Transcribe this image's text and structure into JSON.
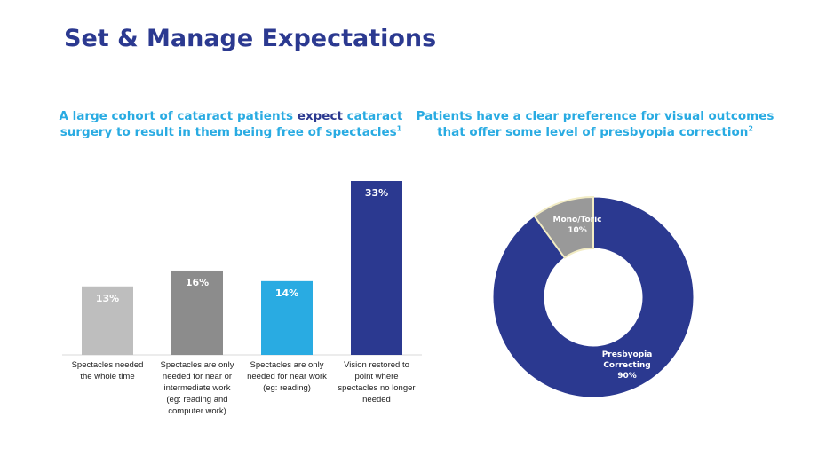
{
  "title": "Set & Manage Expectations",
  "left_panel": {
    "subtitle_part1": "A large cohort of cataract patients ",
    "subtitle_part2": "expect",
    "subtitle_part3": " cataract surgery to result in them being free of spectacles",
    "subtitle_ref": "1"
  },
  "right_panel": {
    "subtitle_text": "Patients have a clear preference for visual outcomes that offer some level of presbyopia correction",
    "subtitle_ref": "2"
  },
  "colors": {
    "title": "#2b3990",
    "accent_blue": "#29abe2",
    "dark_blue": "#2b3990",
    "light_gray": "#bebebe",
    "mid_gray": "#8c8c8c"
  },
  "chart_data": [
    {
      "type": "bar",
      "categories": [
        "Spectacles needed the whole time",
        "Spectacles are only needed for near or intermediate work (eg: reading and computer work)",
        "Spectacles are only needed for near work (eg: reading)",
        "Vision restored to point where spectacles no longer needed"
      ],
      "category_lines": [
        [
          "Spectacles needed",
          "the whole time"
        ],
        [
          "Spectacles are only",
          "needed for near or",
          "intermediate work",
          "(eg: reading and",
          "computer work)"
        ],
        [
          "Spectacles are only",
          "needed for near work",
          "(eg: reading)"
        ],
        [
          "Vision restored to",
          "point where",
          "spectacles no longer",
          "needed"
        ]
      ],
      "values": [
        13,
        16,
        14,
        33
      ],
      "data_labels": [
        "13%",
        "16%",
        "14%",
        "33%"
      ],
      "bar_colors": [
        "#bebebe",
        "#8c8c8c",
        "#29abe2",
        "#2b3990"
      ],
      "ylim": [
        0,
        35
      ],
      "unit": "%",
      "title": "A large cohort of cataract patients expect cataract surgery to result in them being free of spectacles"
    },
    {
      "type": "pie",
      "style": "donut",
      "labels": [
        "Presbyopia Correcting",
        "Mono/Toric"
      ],
      "label_lines": [
        [
          "Presbyopia",
          "Correcting",
          "90%"
        ],
        [
          "Mono/Toric",
          "10%"
        ]
      ],
      "values": [
        90,
        10
      ],
      "colors": [
        "#2b3990",
        "#999999"
      ],
      "title": "Patients have a clear preference for visual outcomes that offer some level of presbyopia correction"
    }
  ]
}
